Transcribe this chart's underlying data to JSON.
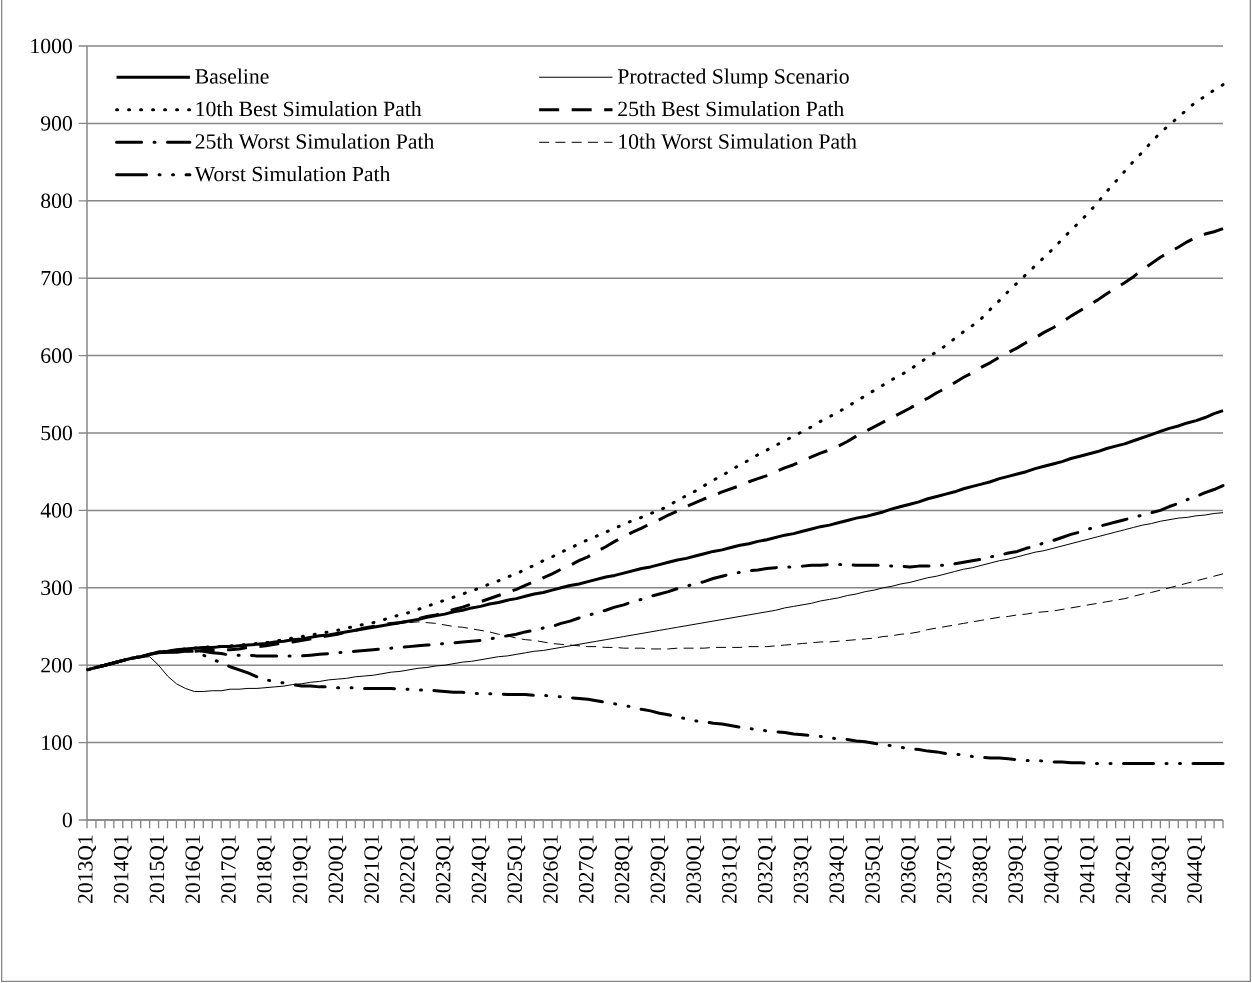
{
  "chart_data": {
    "type": "line",
    "categories": [
      "2013Q1",
      null,
      null,
      null,
      "2014Q1",
      null,
      null,
      null,
      "2015Q1",
      null,
      null,
      null,
      "2016Q1",
      null,
      null,
      null,
      "2017Q1",
      null,
      null,
      null,
      "2018Q1",
      null,
      null,
      null,
      "2019Q1",
      null,
      null,
      null,
      "2020Q1",
      null,
      null,
      null,
      "2021Q1",
      null,
      null,
      null,
      "2022Q1",
      null,
      null,
      null,
      "2023Q1",
      null,
      null,
      null,
      "2024Q1",
      null,
      null,
      null,
      "2025Q1",
      null,
      null,
      null,
      "2026Q1",
      null,
      null,
      null,
      "2027Q1",
      null,
      null,
      null,
      "2028Q1",
      null,
      null,
      null,
      "2029Q1",
      null,
      null,
      null,
      "2030Q1",
      null,
      null,
      null,
      "2031Q1",
      null,
      null,
      null,
      "2032Q1",
      null,
      null,
      null,
      "2033Q1",
      null,
      null,
      null,
      "2034Q1",
      null,
      null,
      null,
      "2035Q1",
      null,
      null,
      null,
      "2036Q1",
      null,
      null,
      null,
      "2037Q1",
      null,
      null,
      null,
      "2038Q1",
      null,
      null,
      null,
      "2039Q1",
      null,
      null,
      null,
      "2040Q1",
      null,
      null,
      null,
      "2041Q1",
      null,
      null,
      null,
      "2042Q1",
      null,
      null,
      null,
      "2043Q1",
      null,
      null,
      null,
      "2044Q1",
      null,
      null,
      null
    ],
    "ylim": [
      0,
      1000
    ],
    "yticks": [
      0,
      100,
      200,
      300,
      400,
      500,
      600,
      700,
      800,
      900,
      1000
    ],
    "grid": "y",
    "legend": "top left",
    "series": [
      {
        "name": "Baseline",
        "color": "#000000",
        "line_style": "solid",
        "values": [
          194,
          197,
          200,
          203,
          206,
          209,
          211,
          214,
          217,
          218,
          220,
          221,
          222,
          223,
          223,
          224,
          224,
          225,
          226,
          227,
          228,
          230,
          231,
          233,
          234,
          236,
          238,
          239,
          241,
          243,
          245,
          247,
          249,
          251,
          253,
          255,
          257,
          259,
          262,
          264,
          266,
          269,
          271,
          274,
          276,
          279,
          281,
          284,
          286,
          289,
          292,
          294,
          297,
          300,
          303,
          305,
          308,
          311,
          314,
          316,
          319,
          322,
          325,
          327,
          330,
          333,
          336,
          338,
          341,
          344,
          347,
          349,
          352,
          355,
          357,
          360,
          362,
          365,
          368,
          370,
          373,
          376,
          379,
          381,
          384,
          387,
          390,
          392,
          395,
          398,
          402,
          405,
          408,
          411,
          415,
          418,
          421,
          424,
          428,
          431,
          434,
          437,
          441,
          444,
          447,
          450,
          454,
          457,
          460,
          463,
          467,
          470,
          473,
          476,
          480,
          483,
          486,
          490,
          494,
          498,
          502,
          506,
          509,
          513,
          516,
          520,
          525,
          529
        ]
      },
      {
        "name": "Protracted Slump Scenario",
        "color": "#000000",
        "line_style": "solid",
        "values": [
          194,
          197,
          200,
          203,
          206,
          208,
          210,
          211,
          200,
          186,
          176,
          170,
          166,
          166,
          167,
          167,
          169,
          169,
          170,
          170,
          171,
          172,
          173,
          175,
          176,
          178,
          179,
          181,
          182,
          183,
          185,
          186,
          187,
          189,
          191,
          192,
          194,
          196,
          197,
          199,
          200,
          202,
          204,
          205,
          207,
          209,
          211,
          212,
          214,
          216,
          218,
          219,
          221,
          223,
          225,
          227,
          229,
          231,
          233,
          235,
          237,
          239,
          241,
          243,
          245,
          247,
          249,
          251,
          253,
          255,
          257,
          259,
          261,
          263,
          265,
          267,
          269,
          271,
          274,
          276,
          278,
          280,
          283,
          285,
          287,
          290,
          292,
          295,
          297,
          300,
          302,
          305,
          307,
          310,
          313,
          315,
          318,
          321,
          324,
          326,
          329,
          332,
          335,
          337,
          340,
          343,
          346,
          348,
          351,
          354,
          357,
          360,
          363,
          366,
          369,
          372,
          375,
          378,
          381,
          383,
          386,
          388,
          390,
          391,
          393,
          394,
          396,
          397
        ]
      },
      {
        "name": "10th Best Simulation Path",
        "color": "#000000",
        "line_style": "dotted",
        "values": [
          194,
          197,
          200,
          203,
          206,
          209,
          211,
          214,
          217,
          218,
          220,
          221,
          222,
          223,
          224,
          224,
          225,
          226,
          227,
          228,
          229,
          231,
          233,
          235,
          237,
          239,
          241,
          243,
          245,
          248,
          250,
          253,
          255,
          258,
          262,
          265,
          268,
          272,
          276,
          280,
          284,
          288,
          292,
          296,
          300,
          305,
          309,
          314,
          318,
          324,
          329,
          335,
          340,
          346,
          351,
          357,
          362,
          367,
          372,
          377,
          382,
          387,
          391,
          396,
          400,
          406,
          413,
          419,
          425,
          432,
          439,
          445,
          452,
          459,
          465,
          472,
          478,
          484,
          490,
          496,
          502,
          508,
          515,
          521,
          527,
          534,
          541,
          548,
          555,
          562,
          569,
          575,
          582,
          590,
          598,
          605,
          613,
          622,
          631,
          639,
          648,
          660,
          671,
          683,
          694,
          705,
          716,
          727,
          738,
          750,
          762,
          773,
          785,
          798,
          812,
          825,
          838,
          851,
          863,
          876,
          888,
          898,
          908,
          918,
          928,
          935,
          943,
          950
        ]
      },
      {
        "name": "25th Best Simulation Path",
        "color": "#000000",
        "line_style": "dashed",
        "values": [
          194,
          197,
          200,
          203,
          206,
          209,
          211,
          214,
          216,
          217,
          217,
          218,
          218,
          219,
          219,
          220,
          220,
          221,
          223,
          224,
          225,
          227,
          229,
          230,
          232,
          234,
          236,
          238,
          240,
          243,
          245,
          248,
          250,
          252,
          254,
          255,
          257,
          260,
          263,
          265,
          268,
          272,
          275,
          279,
          282,
          286,
          290,
          294,
          298,
          303,
          308,
          313,
          318,
          324,
          329,
          335,
          340,
          347,
          353,
          360,
          366,
          372,
          377,
          383,
          388,
          394,
          399,
          405,
          410,
          415,
          419,
          424,
          428,
          432,
          437,
          441,
          445,
          450,
          455,
          459,
          464,
          469,
          474,
          478,
          483,
          489,
          496,
          502,
          508,
          514,
          520,
          526,
          532,
          539,
          545,
          552,
          558,
          565,
          572,
          578,
          585,
          591,
          598,
          604,
          610,
          617,
          623,
          630,
          636,
          643,
          651,
          658,
          665,
          672,
          680,
          687,
          694,
          702,
          711,
          719,
          727,
          734,
          740,
          747,
          753,
          757,
          760,
          764
        ]
      },
      {
        "name": "25th Worst Simulation Path",
        "color": "#000000",
        "line_style": "dashdot",
        "values": [
          194,
          197,
          200,
          203,
          206,
          209,
          211,
          214,
          216,
          217,
          218,
          218,
          219,
          218,
          216,
          215,
          213,
          213,
          213,
          212,
          212,
          212,
          212,
          212,
          212,
          213,
          214,
          215,
          216,
          217,
          218,
          219,
          220,
          221,
          222,
          223,
          224,
          225,
          226,
          227,
          228,
          229,
          230,
          231,
          232,
          234,
          236,
          238,
          240,
          243,
          245,
          248,
          250,
          254,
          257,
          261,
          264,
          268,
          271,
          275,
          278,
          282,
          285,
          289,
          292,
          295,
          299,
          302,
          305,
          308,
          312,
          315,
          318,
          320,
          322,
          323,
          325,
          326,
          327,
          327,
          328,
          329,
          329,
          330,
          330,
          330,
          329,
          329,
          329,
          329,
          328,
          328,
          327,
          328,
          328,
          329,
          329,
          331,
          333,
          335,
          337,
          340,
          342,
          345,
          347,
          351,
          354,
          358,
          361,
          365,
          369,
          372,
          376,
          379,
          382,
          385,
          388,
          391,
          394,
          397,
          400,
          405,
          409,
          414,
          418,
          423,
          427,
          432
        ]
      },
      {
        "name": "10th Worst Simulation Path",
        "color": "#000000",
        "line_style": "dashed",
        "values": [
          194,
          197,
          200,
          203,
          206,
          209,
          211,
          214,
          217,
          218,
          220,
          221,
          222,
          223,
          223,
          224,
          224,
          225,
          226,
          227,
          228,
          230,
          231,
          233,
          234,
          236,
          238,
          239,
          241,
          243,
          245,
          247,
          249,
          251,
          252,
          254,
          255,
          256,
          255,
          254,
          252,
          250,
          249,
          247,
          245,
          243,
          240,
          238,
          235,
          233,
          232,
          230,
          228,
          227,
          226,
          225,
          224,
          224,
          223,
          223,
          222,
          222,
          222,
          221,
          221,
          221,
          222,
          222,
          222,
          222,
          223,
          223,
          223,
          223,
          224,
          224,
          224,
          225,
          226,
          227,
          228,
          229,
          230,
          230,
          231,
          232,
          233,
          234,
          235,
          237,
          238,
          240,
          241,
          243,
          246,
          248,
          250,
          252,
          254,
          256,
          258,
          260,
          262,
          263,
          265,
          266,
          268,
          269,
          270,
          272,
          274,
          276,
          278,
          280,
          282,
          284,
          286,
          289,
          292,
          294,
          297,
          300,
          303,
          306,
          309,
          312,
          315,
          318
        ]
      },
      {
        "name": "Worst Simulation Path",
        "color": "#000000",
        "line_style": "dashdotdot",
        "values": [
          194,
          197,
          200,
          203,
          206,
          209,
          211,
          214,
          216,
          217,
          217,
          218,
          218,
          213,
          208,
          203,
          198,
          194,
          190,
          185,
          181,
          179,
          177,
          175,
          173,
          173,
          172,
          172,
          171,
          171,
          171,
          170,
          170,
          170,
          170,
          169,
          169,
          168,
          168,
          167,
          166,
          165,
          165,
          164,
          163,
          163,
          163,
          162,
          162,
          162,
          161,
          161,
          160,
          159,
          158,
          157,
          156,
          154,
          152,
          150,
          148,
          146,
          143,
          141,
          138,
          136,
          133,
          131,
          128,
          127,
          125,
          124,
          122,
          120,
          118,
          117,
          115,
          114,
          113,
          111,
          110,
          109,
          108,
          106,
          105,
          104,
          102,
          101,
          99,
          97,
          96,
          94,
          92,
          91,
          89,
          88,
          86,
          85,
          84,
          82,
          81,
          80,
          80,
          79,
          78,
          77,
          77,
          76,
          75,
          75,
          74,
          74,
          73,
          73,
          73,
          73,
          73,
          73,
          73,
          73,
          73,
          73,
          73,
          73,
          73,
          73,
          73,
          73
        ]
      }
    ]
  }
}
